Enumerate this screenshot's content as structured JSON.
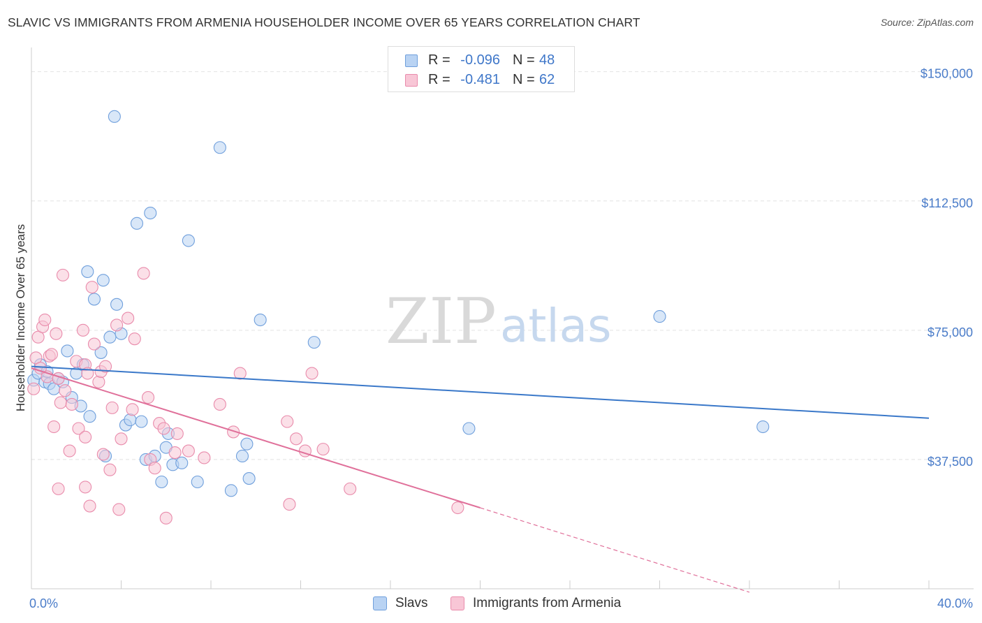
{
  "title": "SLAVIC VS IMMIGRANTS FROM ARMENIA HOUSEHOLDER INCOME OVER 65 YEARS CORRELATION CHART",
  "source": "Source: ZipAtlas.com",
  "watermark": {
    "zip": "ZIP",
    "atlas": "atlas"
  },
  "stats": [
    {
      "r_label": "R =",
      "r_value": "-0.096",
      "n_label": "N =",
      "n_value": "48",
      "fill": "#b9d3f3",
      "stroke": "#6f9fdc"
    },
    {
      "r_label": "R =",
      "r_value": "-0.481",
      "n_label": "N =",
      "n_value": "62",
      "fill": "#f8c6d6",
      "stroke": "#e98bab"
    }
  ],
  "legend": [
    {
      "label": "Slavs",
      "fill": "#b9d3f3",
      "stroke": "#6f9fdc"
    },
    {
      "label": "Immigrants from Armenia",
      "fill": "#f8c6d6",
      "stroke": "#e98bab"
    }
  ],
  "chart_data": {
    "type": "scatter",
    "title": "SLAVIC VS IMMIGRANTS FROM ARMENIA HOUSEHOLDER INCOME OVER 65 YEARS CORRELATION CHART",
    "xlabel": "",
    "ylabel": "Householder Income Over 65 years",
    "xlim": [
      0,
      40
    ],
    "ylim": [
      0,
      155000
    ],
    "x_tick_labels": [
      "0.0%",
      "40.0%"
    ],
    "y_ticks": [
      37500,
      75000,
      112500,
      150000
    ],
    "y_tick_labels": [
      "$37,500",
      "$75,000",
      "$112,500",
      "$150,000"
    ],
    "grid": true,
    "series": [
      {
        "name": "Slavs",
        "color": "#6f9fdc",
        "fill": "#b9d3f3",
        "line_color": "#3a78c9",
        "trend": {
          "x": [
            0,
            40
          ],
          "y": [
            64500,
            49500
          ],
          "dashed_from": null
        },
        "points": [
          [
            0.1,
            60500
          ],
          [
            0.3,
            62500
          ],
          [
            0.4,
            65000
          ],
          [
            0.6,
            60000
          ],
          [
            0.7,
            63000
          ],
          [
            0.8,
            59500
          ],
          [
            1.0,
            58000
          ],
          [
            1.2,
            61000
          ],
          [
            1.4,
            60000
          ],
          [
            1.6,
            69000
          ],
          [
            1.8,
            55500
          ],
          [
            2.0,
            62500
          ],
          [
            2.2,
            53000
          ],
          [
            2.3,
            65000
          ],
          [
            2.5,
            92000
          ],
          [
            2.6,
            50000
          ],
          [
            2.8,
            84000
          ],
          [
            3.1,
            68500
          ],
          [
            3.2,
            89500
          ],
          [
            3.3,
            38500
          ],
          [
            3.5,
            73000
          ],
          [
            3.7,
            137000
          ],
          [
            3.8,
            82500
          ],
          [
            4.0,
            74000
          ],
          [
            4.2,
            47500
          ],
          [
            4.4,
            49000
          ],
          [
            4.7,
            106000
          ],
          [
            4.9,
            48500
          ],
          [
            5.1,
            37500
          ],
          [
            5.3,
            109000
          ],
          [
            5.5,
            38500
          ],
          [
            5.8,
            31000
          ],
          [
            6.0,
            41000
          ],
          [
            6.1,
            45000
          ],
          [
            6.3,
            36000
          ],
          [
            6.7,
            36500
          ],
          [
            7.0,
            101000
          ],
          [
            7.4,
            31000
          ],
          [
            8.4,
            128000
          ],
          [
            8.9,
            28500
          ],
          [
            9.4,
            38500
          ],
          [
            9.6,
            42000
          ],
          [
            9.7,
            32000
          ],
          [
            10.2,
            78000
          ],
          [
            12.6,
            71500
          ],
          [
            19.5,
            46500
          ],
          [
            28.0,
            79000
          ],
          [
            32.6,
            47000
          ]
        ]
      },
      {
        "name": "Immigrants from Armenia",
        "color": "#e98bab",
        "fill": "#f8c6d6",
        "line_color": "#e0709a",
        "trend": {
          "x": [
            0,
            20
          ],
          "y": [
            64000,
            23500
          ],
          "dashed_to": [
            32,
            -1000
          ]
        },
        "points": [
          [
            0.1,
            58000
          ],
          [
            0.2,
            67000
          ],
          [
            0.3,
            73000
          ],
          [
            0.4,
            64000
          ],
          [
            0.5,
            76000
          ],
          [
            0.6,
            78000
          ],
          [
            0.7,
            61500
          ],
          [
            0.8,
            67500
          ],
          [
            0.9,
            68000
          ],
          [
            1.0,
            47000
          ],
          [
            1.1,
            74000
          ],
          [
            1.2,
            61000
          ],
          [
            1.3,
            54000
          ],
          [
            1.4,
            91000
          ],
          [
            1.5,
            57500
          ],
          [
            1.7,
            40000
          ],
          [
            1.8,
            53500
          ],
          [
            2.0,
            66000
          ],
          [
            2.1,
            46500
          ],
          [
            2.3,
            75000
          ],
          [
            2.4,
            44000
          ],
          [
            2.4,
            65000
          ],
          [
            2.5,
            62500
          ],
          [
            2.6,
            24000
          ],
          [
            2.7,
            87500
          ],
          [
            2.8,
            71000
          ],
          [
            3.0,
            60000
          ],
          [
            3.1,
            63000
          ],
          [
            3.2,
            39000
          ],
          [
            3.3,
            64500
          ],
          [
            3.5,
            34500
          ],
          [
            3.6,
            52500
          ],
          [
            3.8,
            76500
          ],
          [
            3.9,
            23000
          ],
          [
            4.0,
            43500
          ],
          [
            4.3,
            78500
          ],
          [
            4.5,
            52000
          ],
          [
            4.6,
            72500
          ],
          [
            5.0,
            91500
          ],
          [
            5.2,
            55500
          ],
          [
            5.3,
            37500
          ],
          [
            5.5,
            35000
          ],
          [
            5.7,
            48000
          ],
          [
            5.9,
            46500
          ],
          [
            6.0,
            20500
          ],
          [
            6.4,
            39500
          ],
          [
            7.0,
            40000
          ],
          [
            7.7,
            38000
          ],
          [
            8.4,
            53500
          ],
          [
            9.0,
            45500
          ],
          [
            9.3,
            62500
          ],
          [
            11.4,
            48500
          ],
          [
            11.8,
            43500
          ],
          [
            12.2,
            40000
          ],
          [
            12.5,
            62500
          ],
          [
            14.2,
            29000
          ],
          [
            11.5,
            24500
          ],
          [
            13.0,
            40500
          ],
          [
            19.0,
            23500
          ],
          [
            1.2,
            29000
          ],
          [
            6.5,
            45000
          ],
          [
            2.4,
            29500
          ]
        ]
      }
    ]
  }
}
